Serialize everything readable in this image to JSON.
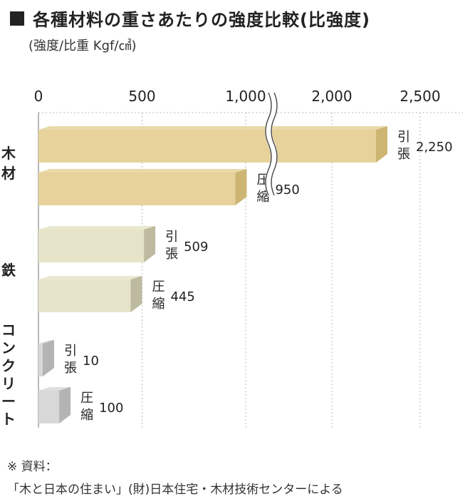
{
  "title": "各種材料の重さあたりの強度比較(比強度)",
  "subtitle": "(強度/比重 Kgf/㎠)",
  "note_line1": "※ 資料：",
  "note_line2": "「木と日本の住まい」(財)日本住宅・木材技術センターによる",
  "chart_data": {
    "type": "bar",
    "orientation": "horizontal",
    "title": "各種材料の重さあたりの強度比較(比強度)",
    "unit": "(強度/比重 Kgf/㎠)",
    "axis_break": "between 1,000 and 2,000",
    "x_ticks": [
      "0",
      "500",
      "1,000",
      "2,000",
      "2,500"
    ],
    "grid": true,
    "categories": [
      {
        "name": "木材",
        "bars": [
          {
            "label": "引張",
            "value": 2250,
            "value_label": "2,250"
          },
          {
            "label": "圧縮",
            "value": 950,
            "value_label": "950"
          }
        ]
      },
      {
        "name": "鉄",
        "bars": [
          {
            "label": "引張",
            "value": 509,
            "value_label": "509"
          },
          {
            "label": "圧縮",
            "value": 445,
            "value_label": "445"
          }
        ]
      },
      {
        "name": "コンクリート",
        "bars": [
          {
            "label": "引張",
            "value": 10,
            "value_label": "10"
          },
          {
            "label": "圧縮",
            "value": 100,
            "value_label": "100"
          }
        ]
      }
    ],
    "colors": {
      "wood": "#e6d29a",
      "wood_dark": "#cdb573",
      "steel": "#e6e4c8",
      "steel_dark": "#bdbaa0",
      "concrete": "#d8d8d8",
      "concrete_dark": "#b4b4b4"
    }
  }
}
